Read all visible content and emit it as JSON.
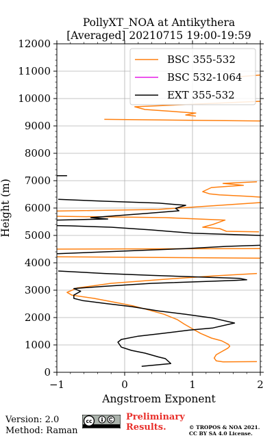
{
  "chart_data": {
    "type": "line",
    "title": "PollyXT_NOA at Antikythera",
    "subtitle": "[Averaged] 20210715 19:00-19:59",
    "xlabel": "Angstroem Exponent",
    "ylabel": "Height (m)",
    "xlim": [
      -1,
      2
    ],
    "ylim": [
      0,
      12000
    ],
    "xticks": [
      -1,
      0,
      1,
      2
    ],
    "xtick_labels": [
      "−1",
      "0",
      "1",
      "2"
    ],
    "yticks": [
      0,
      1000,
      2000,
      3000,
      4000,
      5000,
      6000,
      7000,
      8000,
      9000,
      10000,
      11000,
      12000
    ],
    "ytick_labels": [
      "0",
      "1000",
      "2000",
      "3000",
      "4000",
      "5000",
      "6000",
      "7000",
      "8000",
      "9000",
      "10000",
      "11000",
      "12000"
    ],
    "grid": true,
    "legend_position": "top-right",
    "series": [
      {
        "name": "BSC 355-532",
        "color": "#ff7f0e",
        "points": [
          [
            1.95,
            390
          ],
          [
            1.45,
            380
          ],
          [
            1.35,
            420
          ],
          [
            1.32,
            520
          ],
          [
            1.35,
            640
          ],
          [
            1.42,
            740
          ],
          [
            1.52,
            880
          ],
          [
            1.55,
            950
          ],
          [
            1.53,
            1020
          ],
          [
            1.43,
            1150
          ],
          [
            1.28,
            1250
          ],
          [
            1.12,
            1420
          ],
          [
            1.02,
            1560
          ],
          [
            0.88,
            1760
          ],
          [
            0.78,
            1920
          ],
          [
            0.58,
            2120
          ],
          [
            0.35,
            2280
          ],
          [
            0.12,
            2430
          ],
          [
            -0.15,
            2560
          ],
          [
            -0.45,
            2700
          ],
          [
            -0.78,
            2820
          ],
          [
            -0.85,
            2920
          ],
          [
            -0.7,
            3080
          ],
          [
            -0.2,
            3250
          ],
          [
            0.6,
            3400
          ],
          [
            1.3,
            3520
          ],
          [
            1.95,
            3610
          ],
          null,
          [
            2.0,
            4170
          ],
          [
            -1.0,
            4220
          ],
          null,
          [
            -1.0,
            4500
          ],
          [
            2.0,
            4520
          ],
          null,
          [
            1.98,
            5130
          ],
          [
            1.5,
            5150
          ],
          [
            1.4,
            5250
          ],
          [
            1.15,
            5300
          ],
          [
            1.3,
            5400
          ],
          [
            1.48,
            5560
          ],
          [
            0.6,
            5650
          ],
          [
            -1.0,
            5700
          ],
          null,
          [
            -1.0,
            5890
          ],
          [
            0.5,
            5950
          ],
          [
            2.0,
            6200
          ],
          null,
          [
            2.0,
            6400
          ],
          [
            1.8,
            6430
          ],
          [
            1.4,
            6480
          ],
          [
            1.25,
            6520
          ],
          [
            1.15,
            6600
          ],
          [
            1.28,
            6750
          ],
          [
            1.75,
            6830
          ],
          [
            1.45,
            6900
          ],
          [
            1.95,
            6960
          ],
          null,
          [
            -0.3,
            9240
          ],
          [
            2.0,
            9180
          ],
          null,
          [
            1.05,
            9360
          ],
          [
            0.9,
            9400
          ],
          [
            1.05,
            9470
          ],
          [
            0.3,
            9600
          ],
          [
            0.15,
            9700
          ],
          [
            2.0,
            9900
          ],
          null,
          [
            1.7,
            10800
          ],
          [
            2.0,
            10860
          ]
        ]
      },
      {
        "name": "BSC 532-1064",
        "color": "#e61be6",
        "points": []
      },
      {
        "name": "EXT 355-532",
        "color": "#000000",
        "points": [
          [
            0.25,
            220
          ],
          [
            0.68,
            320
          ],
          [
            0.6,
            500
          ],
          [
            0.5,
            560
          ],
          [
            0.3,
            700
          ],
          [
            0.1,
            800
          ],
          [
            -0.05,
            920
          ],
          [
            -0.1,
            1100
          ],
          [
            -0.05,
            1200
          ],
          [
            0.2,
            1320
          ],
          [
            0.55,
            1420
          ],
          [
            0.95,
            1540
          ],
          [
            1.3,
            1620
          ],
          [
            1.62,
            1800
          ],
          [
            1.3,
            1980
          ],
          [
            0.9,
            2120
          ],
          [
            0.5,
            2240
          ],
          [
            0.1,
            2400
          ],
          [
            -0.3,
            2520
          ],
          [
            -0.62,
            2620
          ],
          [
            -0.75,
            2700
          ],
          [
            -0.75,
            2820
          ],
          [
            -0.65,
            2960
          ],
          [
            -0.75,
            3060
          ],
          [
            -0.3,
            3140
          ],
          [
            0.4,
            3250
          ],
          [
            1.2,
            3320
          ],
          [
            1.65,
            3360
          ],
          [
            1.8,
            3380
          ],
          [
            1.7,
            3430
          ],
          [
            1.1,
            3480
          ],
          [
            0.4,
            3540
          ],
          [
            -0.3,
            3610
          ],
          [
            -0.98,
            3700
          ],
          null,
          [
            -1.0,
            4330
          ],
          [
            -0.3,
            4400
          ],
          [
            0.9,
            4520
          ],
          [
            1.5,
            4600
          ],
          [
            2.0,
            4640
          ],
          null,
          [
            2.0,
            5000
          ],
          [
            1.0,
            5080
          ],
          [
            0.4,
            5200
          ],
          [
            -0.2,
            5300
          ],
          [
            -0.8,
            5350
          ],
          [
            -1.0,
            5360
          ],
          null,
          [
            -1.0,
            5560
          ],
          [
            -0.25,
            5600
          ],
          [
            -0.5,
            5650
          ],
          [
            0.3,
            5800
          ],
          [
            0.8,
            5900
          ],
          [
            0.75,
            5990
          ],
          [
            0.9,
            6100
          ],
          [
            0.5,
            6180
          ],
          [
            -0.3,
            6250
          ],
          [
            -0.98,
            6320
          ],
          null,
          [
            -1.0,
            7180
          ],
          [
            -0.85,
            7180
          ]
        ]
      }
    ]
  },
  "footer": {
    "version": "Version: 2.0",
    "method": "Method: Raman",
    "preliminary_line1": "Preliminary",
    "preliminary_line2": "Results.",
    "copyright_line1": "© TROPOS & NOA 2021.",
    "copyright_line2": "CC BY SA 4.0 License."
  }
}
